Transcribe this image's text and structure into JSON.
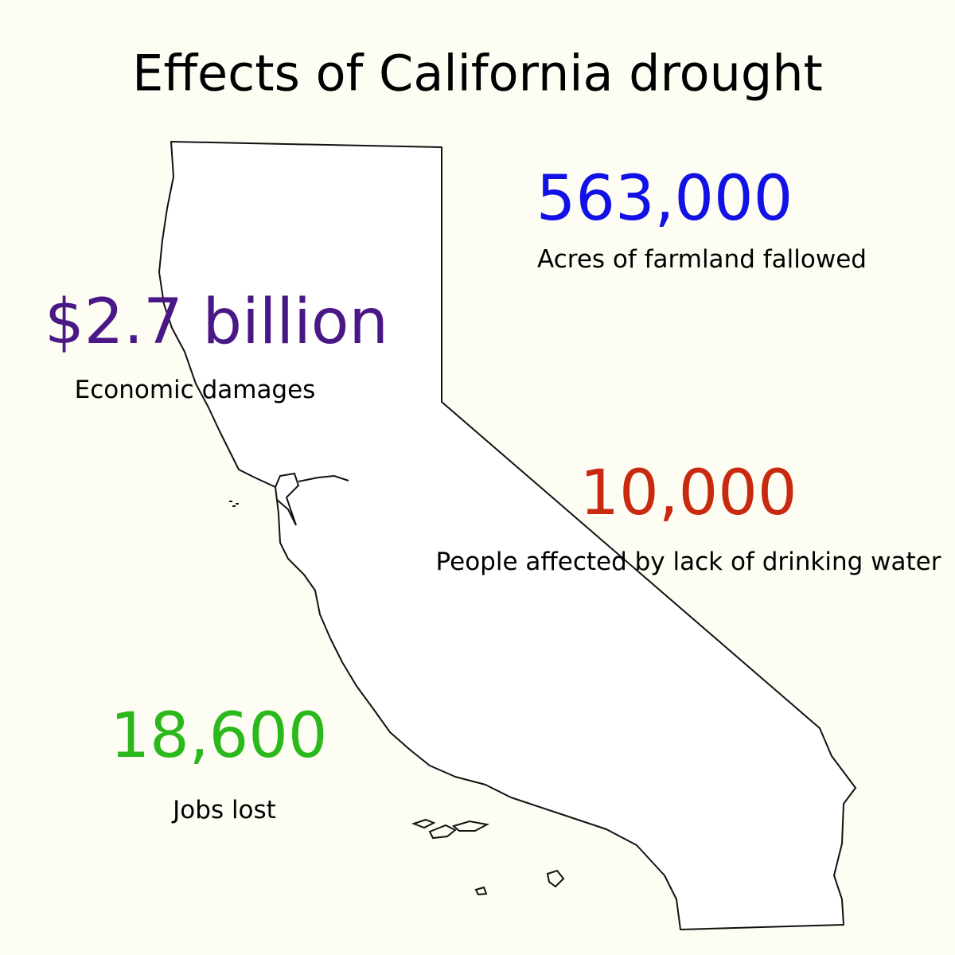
{
  "header": {
    "title": "Effects of California drought"
  },
  "stats": [
    {
      "value": "563,000",
      "label": "Acres of farmland fallowed"
    },
    {
      "value": "$2.7 billion",
      "label": "Economic damages"
    },
    {
      "value": "10,000",
      "label": "People affected by lack of drinking water"
    },
    {
      "value": "18,600",
      "label": "Jobs lost"
    }
  ]
}
